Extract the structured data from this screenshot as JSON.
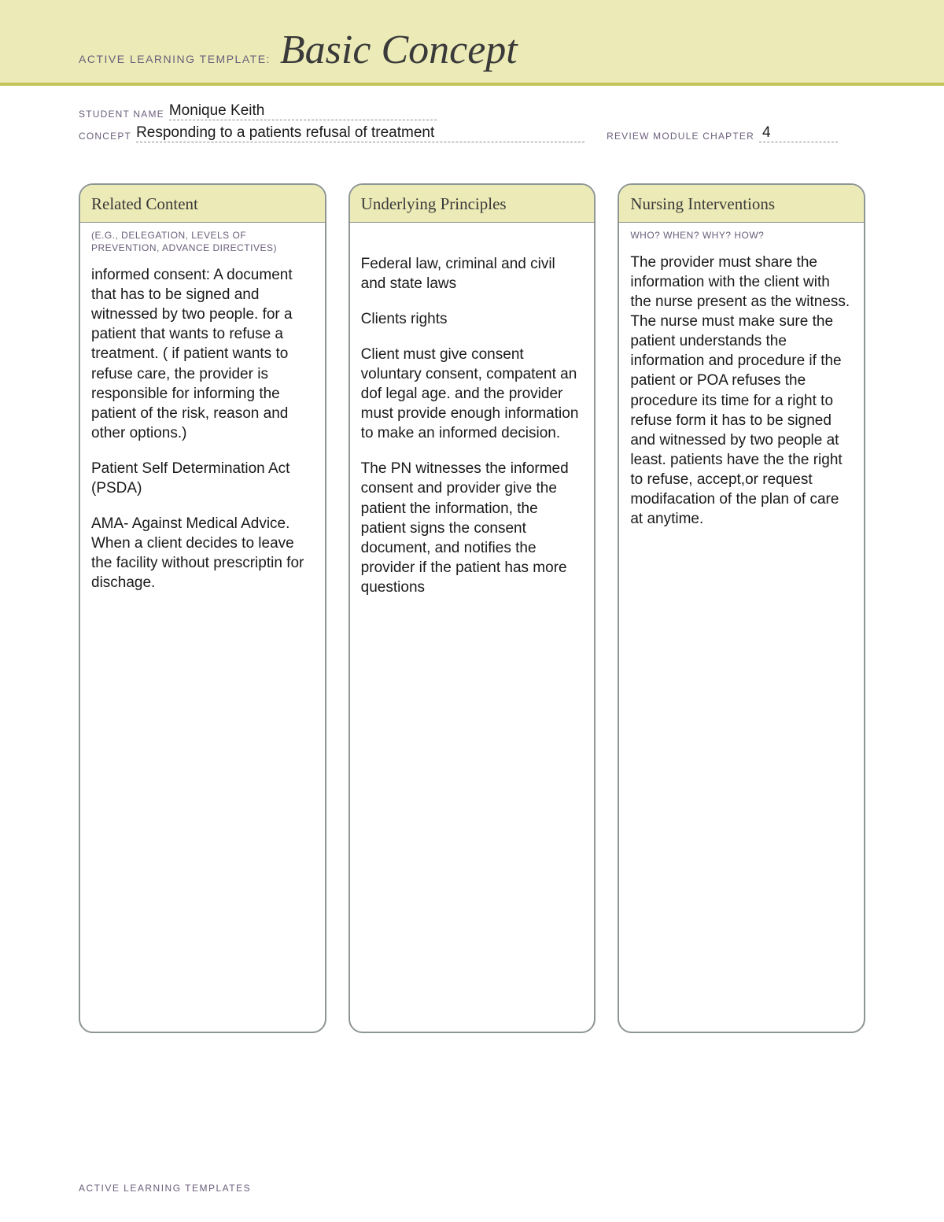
{
  "banner": {
    "label": "ACTIVE LEARNING TEMPLATE:",
    "title": "Basic Concept"
  },
  "meta": {
    "student_label": "STUDENT NAME",
    "student_value": "Monique Keith",
    "concept_label": "CONCEPT",
    "concept_value": "Responding to a patients refusal of treatment",
    "chapter_label": "REVIEW MODULE CHAPTER",
    "chapter_value": "4"
  },
  "columns": {
    "related": {
      "title": "Related Content",
      "subtitle": "(E.G., DELEGATION,\nLEVELS OF PREVENTION,\nADVANCE DIRECTIVES)",
      "p1": "informed consent: A document that has to be signed and witnessed by two people. for a patient that wants to refuse a treatment. ( if patient wants to refuse care, the provider is responsible for informing the patient of the risk, reason and other options.)",
      "p2": "Patient Self Determination Act (PSDA)",
      "p3": "AMA- Against Medical Advice. When a client decides to leave the facility without prescriptin for dischage."
    },
    "principles": {
      "title": "Underlying Principles",
      "p1": "Federal law, criminal and civil and state laws",
      "p2": "Clients rights",
      "p3": "Client must give consent voluntary consent, compatent an dof legal age. and the provider must provide enough information to make an informed decision.",
      "p4": "The PN witnesses the informed consent and provider give the patient the information, the patient signs the consent document, and notifies the provider if the patient has more questions"
    },
    "interventions": {
      "title": "Nursing Interventions",
      "subtitle": "WHO? WHEN? WHY? HOW?",
      "p1": "The provider must share the information with the client with the nurse present as the witness.\nThe nurse must make sure the patient understands the information and procedure if the patient or POA refuses the procedure its time for a right to refuse form it has to be signed and witnessed by two people at least. patients have the the right to refuse, accept,or request modifacation of the plan of care at anytime."
    }
  },
  "footer": "ACTIVE LEARNING TEMPLATES",
  "colors": {
    "banner_bg": "#ecebb7",
    "banner_rule": "#c3c35a",
    "label_text": "#6a5e7a",
    "title_text": "#3a3a3a",
    "body_text": "#1a1a1a",
    "card_border": "#8e9694",
    "underline": "#8b8b8b"
  }
}
